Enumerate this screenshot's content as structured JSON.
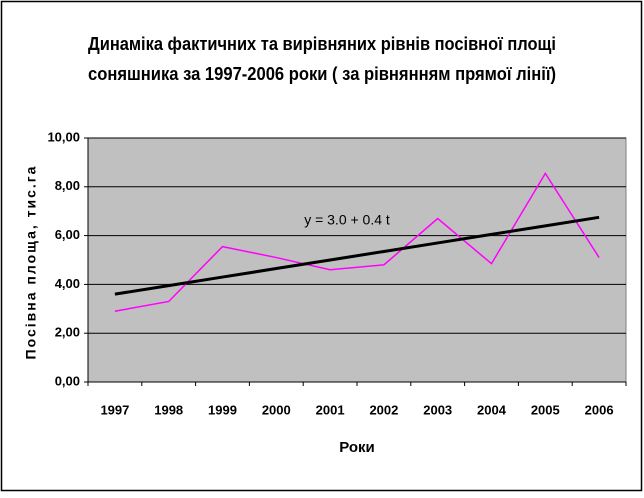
{
  "chart_data": {
    "type": "line",
    "title": [
      "Динаміка фактичних та вирівняних рівнів посівної площі",
      "соняшника за 1997-2006 роки ( за рівнянням прямої лінії)"
    ],
    "x_label": "Роки",
    "y_label": "Посівна площа, тис.га",
    "annotation": "y = 3.0 + 0.4 t",
    "categories": [
      "1997",
      "1998",
      "1999",
      "2000",
      "2001",
      "2002",
      "2003",
      "2004",
      "2005",
      "2006"
    ],
    "series": [
      {
        "color": "#ff00ff",
        "values": [
          2.9,
          3.3,
          5.55,
          5.1,
          4.6,
          4.8,
          6.7,
          4.85,
          8.55,
          5.1
        ]
      },
      {
        "color": "#000000",
        "values": [
          3.6,
          3.95,
          4.3,
          4.65,
          5.0,
          5.35,
          5.7,
          6.05,
          6.4,
          6.75
        ]
      }
    ],
    "ylim": [
      0,
      10
    ],
    "yticks": [
      {
        "value": 0,
        "label": "0,00"
      },
      {
        "value": 2,
        "label": "2,00"
      },
      {
        "value": 4,
        "label": "4,00"
      },
      {
        "value": 6,
        "label": "6,00"
      },
      {
        "value": 8,
        "label": "8,00"
      },
      {
        "value": 10,
        "label": "10,00"
      }
    ],
    "grid": true,
    "plot_background": "#c0c0c0"
  }
}
